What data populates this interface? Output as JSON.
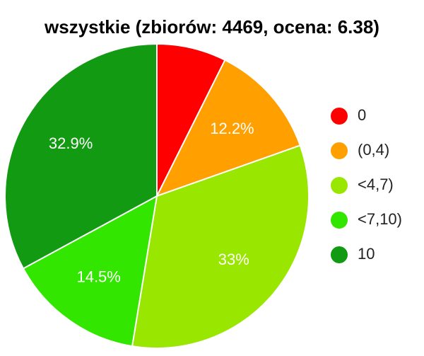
{
  "chart_data": {
    "type": "pie",
    "title": "wszystkie (zbiorów: 4469, ocena: 6.38)",
    "categories": [
      "0",
      "(0,4)",
      "<4,7)",
      "<7,10)",
      "10"
    ],
    "values": [
      7.4,
      12.2,
      33,
      14.5,
      32.9
    ],
    "value_labels": [
      null,
      "12.2%",
      "33%",
      "14.5%",
      "32.9%"
    ],
    "colors": [
      "#ff0000",
      "#ffa000",
      "#99e600",
      "#33e600",
      "#139a13"
    ],
    "legend": "right"
  }
}
